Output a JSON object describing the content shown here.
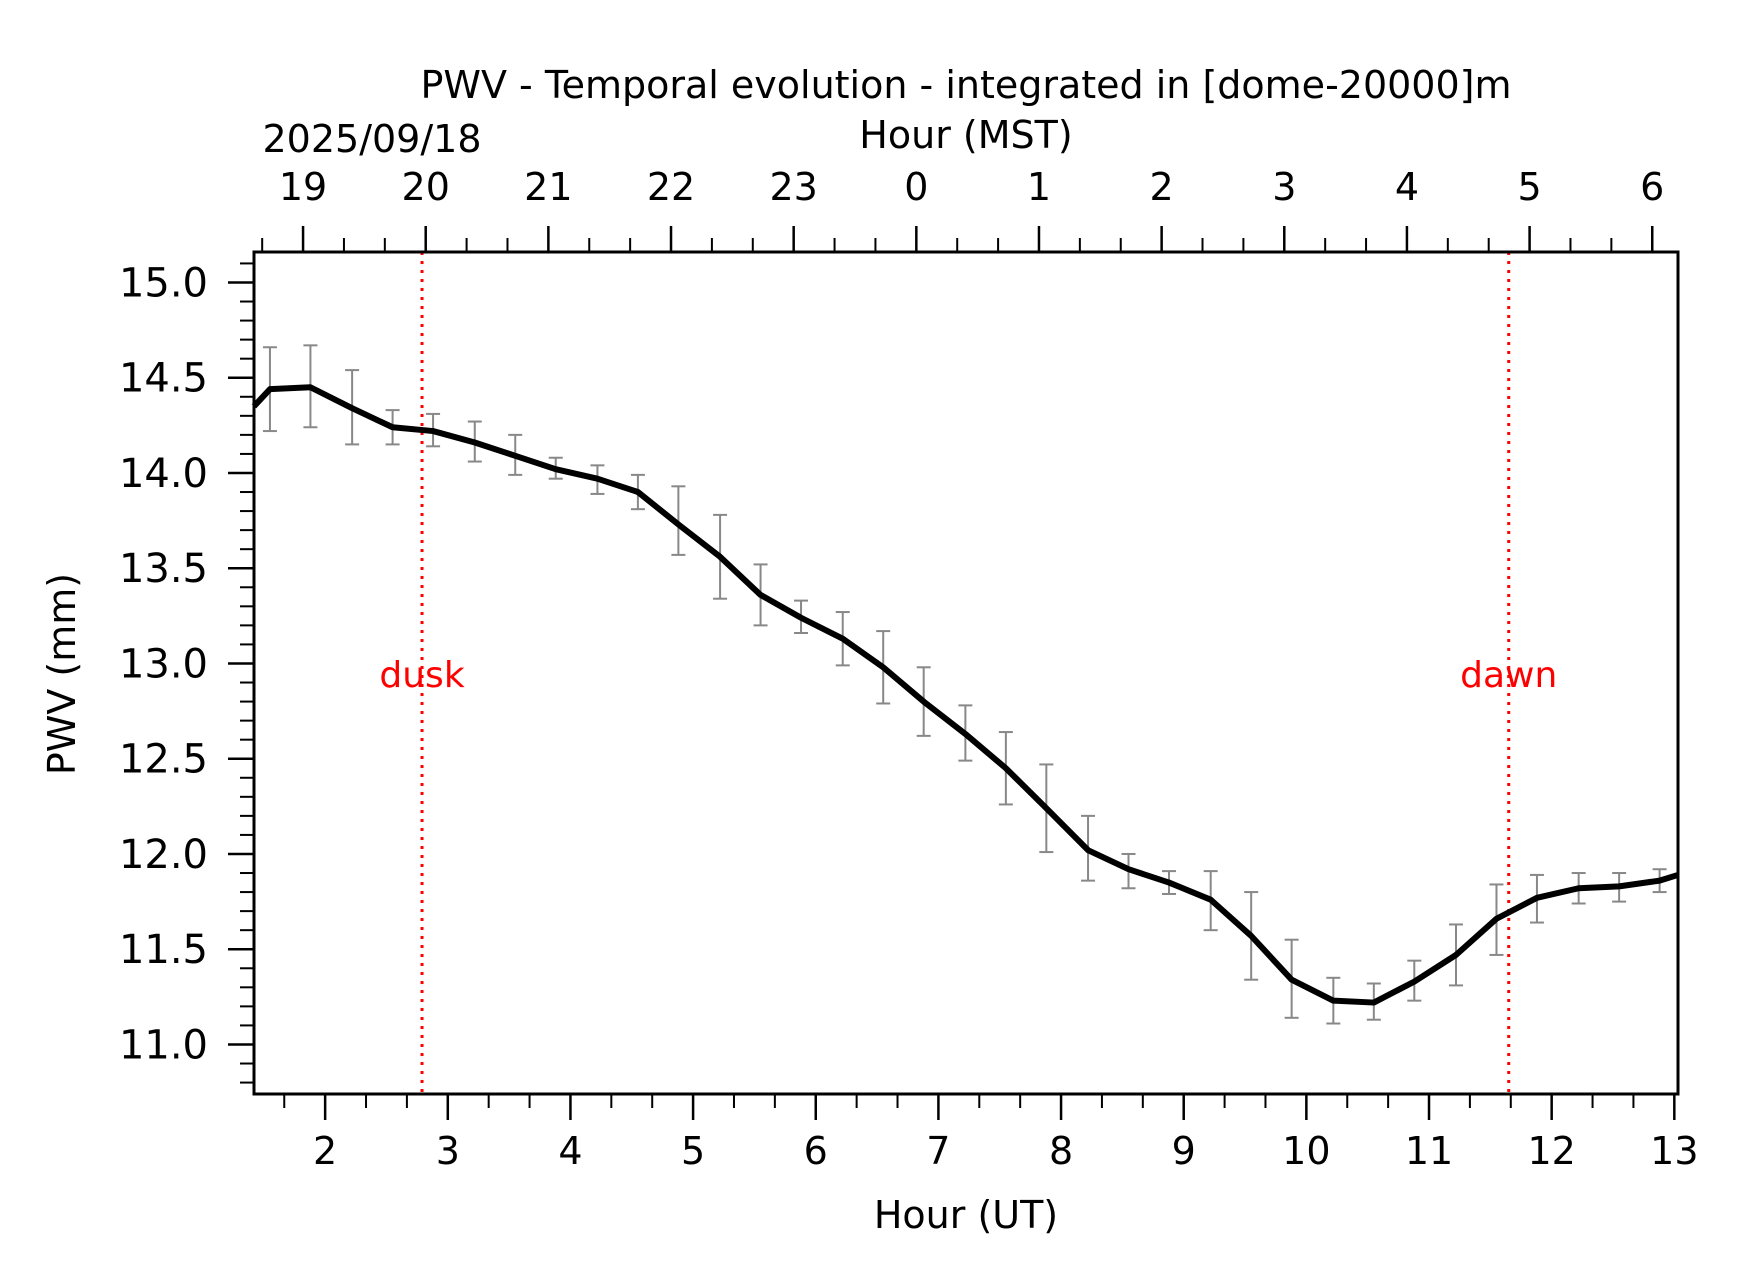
{
  "chart_data": {
    "type": "line",
    "title": "PWV - Temporal evolution - integrated in [dome-20000]m",
    "date_label": "2025/09/18",
    "xlabel": "Hour (UT)",
    "x2label": "Hour (MST)",
    "ylabel": "PWV (mm)",
    "xlim": [
      1.42,
      13.03
    ],
    "ylim": [
      10.74,
      15.16
    ],
    "xticks": [
      2,
      3,
      4,
      5,
      6,
      7,
      8,
      9,
      10,
      11,
      12,
      13
    ],
    "xtick_labels": [
      "2",
      "3",
      "4",
      "5",
      "6",
      "7",
      "8",
      "9",
      "10",
      "11",
      "12",
      "13"
    ],
    "x2ticks": [
      1.82,
      2.82,
      3.82,
      4.82,
      5.82,
      6.82,
      7.82,
      8.82,
      9.82,
      10.82,
      11.82,
      12.82
    ],
    "x2tick_labels": [
      "19",
      "20",
      "21",
      "22",
      "23",
      "0",
      "1",
      "2",
      "3",
      "4",
      "5",
      "6"
    ],
    "yticks": [
      11.0,
      11.5,
      12.0,
      12.5,
      13.0,
      13.5,
      14.0,
      14.5,
      15.0
    ],
    "ytick_labels": [
      "11.0",
      "11.5",
      "12.0",
      "12.5",
      "13.0",
      "13.5",
      "14.0",
      "14.5",
      "15.0"
    ],
    "series": [
      {
        "name": "PWV",
        "color": "#000000",
        "x": [
          1.42,
          1.55,
          1.88,
          2.22,
          2.55,
          2.88,
          3.22,
          3.55,
          3.88,
          4.22,
          4.55,
          4.88,
          5.22,
          5.55,
          5.88,
          6.22,
          6.55,
          6.88,
          7.22,
          7.55,
          7.88,
          8.22,
          8.55,
          8.88,
          9.22,
          9.55,
          9.88,
          10.22,
          10.55,
          10.88,
          11.22,
          11.55,
          11.88,
          12.22,
          12.55,
          12.88,
          13.03
        ],
        "y": [
          14.35,
          14.44,
          14.45,
          14.34,
          14.24,
          14.22,
          14.16,
          14.09,
          14.02,
          13.97,
          13.9,
          13.73,
          13.56,
          13.36,
          13.24,
          13.13,
          12.98,
          12.8,
          12.63,
          12.45,
          12.24,
          12.02,
          11.92,
          11.85,
          11.76,
          11.57,
          11.34,
          11.23,
          11.22,
          11.33,
          11.47,
          11.66,
          11.77,
          11.82,
          11.83,
          11.86,
          11.89
        ]
      }
    ],
    "error_bars": {
      "color": "#888888",
      "x": [
        1.55,
        1.88,
        2.22,
        2.55,
        2.88,
        3.22,
        3.55,
        3.88,
        4.22,
        4.55,
        4.88,
        5.22,
        5.55,
        5.88,
        6.22,
        6.55,
        6.88,
        7.22,
        7.55,
        7.88,
        8.22,
        8.55,
        8.88,
        9.22,
        9.55,
        9.88,
        10.22,
        10.55,
        10.88,
        11.22,
        11.55,
        11.88,
        12.22,
        12.55,
        12.88
      ],
      "low": [
        14.22,
        14.24,
        14.15,
        14.15,
        14.14,
        14.06,
        13.99,
        13.97,
        13.89,
        13.81,
        13.57,
        13.34,
        13.2,
        13.16,
        12.99,
        12.79,
        12.62,
        12.49,
        12.26,
        12.01,
        11.86,
        11.82,
        11.79,
        11.6,
        11.34,
        11.14,
        11.11,
        11.13,
        11.23,
        11.31,
        11.47,
        11.64,
        11.74,
        11.75,
        11.8
      ],
      "high": [
        14.66,
        14.67,
        14.54,
        14.33,
        14.31,
        14.27,
        14.2,
        14.08,
        14.04,
        13.99,
        13.93,
        13.78,
        13.52,
        13.33,
        13.27,
        13.17,
        12.98,
        12.78,
        12.64,
        12.47,
        12.2,
        12.0,
        11.91,
        11.91,
        11.8,
        11.55,
        11.35,
        11.32,
        11.44,
        11.63,
        11.84,
        11.89,
        11.9,
        11.9,
        11.92
      ]
    },
    "vlines": [
      {
        "label": "dusk",
        "x": 2.79,
        "color": "#ff0000",
        "label_y": 12.95
      },
      {
        "label": "dawn",
        "x": 11.65,
        "color": "#ff0000",
        "label_y": 12.95
      }
    ],
    "grid": false
  }
}
